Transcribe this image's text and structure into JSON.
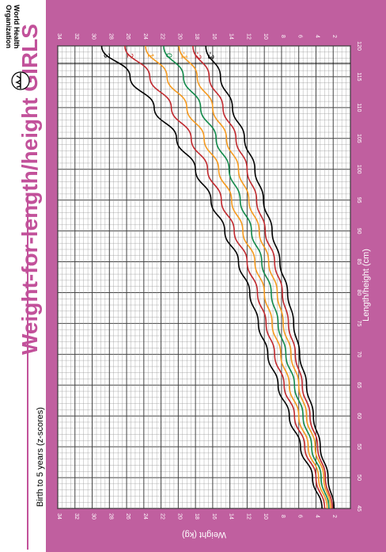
{
  "header": {
    "title": "Weight-for-length/height  GIRLS",
    "subtitle": "Birth to 5 years (z-scores)",
    "logo_text_line1": "World Health",
    "logo_text_line2": "Organization"
  },
  "colors": {
    "panel": "#c05f9f",
    "title": "#c2519a",
    "sd3": "#000000",
    "sd2": "#c0282d",
    "sd1": "#f59a1f",
    "median": "#12894a"
  },
  "chart_data": {
    "type": "line",
    "title": "Weight-for-length/height  GIRLS",
    "subtitle": "Birth to 5 years (z-scores)",
    "xlabel": "Length/height (cm)",
    "ylabel": "Weight (kg)",
    "xlim": [
      45,
      120
    ],
    "ylim": [
      0,
      34
    ],
    "grid": true,
    "orientation": "rotated",
    "x_ticks": [
      45,
      50,
      55,
      60,
      65,
      70,
      75,
      80,
      85,
      90,
      95,
      100,
      105,
      110,
      115,
      120
    ],
    "y_ticks": [
      2,
      4,
      6,
      8,
      10,
      12,
      14,
      16,
      18,
      20,
      22,
      24,
      26,
      28,
      30,
      32,
      34
    ],
    "x": [
      45,
      50,
      55,
      60,
      65,
      70,
      75,
      80,
      85,
      90,
      95,
      100,
      105,
      110,
      115,
      120
    ],
    "series": [
      {
        "name": "3",
        "color": "#000000",
        "values": [
          3.3,
          4.4,
          5.8,
          7.1,
          8.4,
          9.6,
          10.7,
          11.7,
          13.0,
          14.6,
          16.2,
          18.0,
          20.2,
          22.8,
          25.6,
          28.9
        ]
      },
      {
        "name": "2",
        "color": "#c0282d",
        "values": [
          3.0,
          4.0,
          5.3,
          6.5,
          7.7,
          8.8,
          9.8,
          10.8,
          12.0,
          13.5,
          15.0,
          16.6,
          18.5,
          20.8,
          23.3,
          26.2
        ]
      },
      {
        "name": "1",
        "color": "#f59a1f",
        "values": [
          2.7,
          3.7,
          4.9,
          6.0,
          7.1,
          8.1,
          9.1,
          10.0,
          11.1,
          12.5,
          13.8,
          15.3,
          17.0,
          19.0,
          21.3,
          23.8
        ]
      },
      {
        "name": "0",
        "color": "#12894a",
        "values": [
          2.5,
          3.4,
          4.5,
          5.5,
          6.5,
          7.5,
          8.4,
          9.2,
          10.3,
          11.5,
          12.8,
          14.1,
          15.6,
          17.4,
          19.4,
          21.7
        ]
      },
      {
        "name": "-1",
        "color": "#f59a1f",
        "values": [
          2.3,
          3.1,
          4.1,
          5.1,
          6.0,
          6.9,
          7.8,
          8.5,
          9.5,
          10.6,
          11.8,
          13.0,
          14.4,
          16.0,
          17.8,
          19.9
        ]
      },
      {
        "name": "-2",
        "color": "#c0282d",
        "values": [
          2.1,
          2.9,
          3.8,
          4.7,
          5.6,
          6.4,
          7.2,
          7.9,
          8.8,
          9.9,
          10.9,
          12.0,
          13.3,
          14.8,
          16.4,
          18.3
        ]
      },
      {
        "name": "-3",
        "color": "#000000",
        "values": [
          1.9,
          2.6,
          3.5,
          4.3,
          5.1,
          5.9,
          6.6,
          7.3,
          8.2,
          9.1,
          10.1,
          11.1,
          12.3,
          13.7,
          15.1,
          16.8
        ]
      }
    ]
  }
}
